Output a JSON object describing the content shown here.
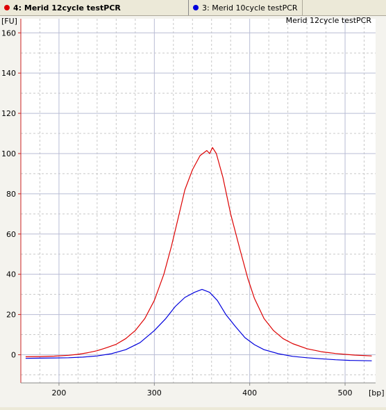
{
  "tabs": [
    {
      "label": "4: Merid 12cycle testPCR",
      "color": "#dd0000",
      "active": true
    },
    {
      "label": "3: Merid 10cycle testPCR",
      "color": "#0000dd",
      "active": false
    }
  ],
  "chart_data": {
    "type": "line",
    "title": "Merid 12cycle testPCR",
    "xlabel": "[bp]",
    "ylabel": "[FU]",
    "x_ticks": [
      "200",
      "300",
      "400",
      "500"
    ],
    "y_ticks": [
      "0",
      "20",
      "40",
      "60",
      "80",
      "100",
      "120",
      "140",
      "160"
    ],
    "colors": {
      "plot_bg": "#ffffff",
      "axis": "#cc2222",
      "grid_major": "#b8bcd4",
      "grid_minor": "#c8c8c8"
    },
    "series": [
      {
        "color": "#dd0000",
        "points": [
          [
            165,
            -1.0
          ],
          [
            180,
            -0.9
          ],
          [
            195,
            -0.7
          ],
          [
            210,
            -0.3
          ],
          [
            220,
            0.2
          ],
          [
            230,
            1.0
          ],
          [
            240,
            2.0
          ],
          [
            250,
            3.5
          ],
          [
            260,
            5.2
          ],
          [
            270,
            8.0
          ],
          [
            280,
            12.0
          ],
          [
            290,
            18.0
          ],
          [
            300,
            27.0
          ],
          [
            310,
            40.0
          ],
          [
            318,
            54.0
          ],
          [
            325,
            68.0
          ],
          [
            332,
            82.0
          ],
          [
            340,
            92.0
          ],
          [
            348,
            99.0
          ],
          [
            355,
            101.5
          ],
          [
            358,
            100.0
          ],
          [
            361,
            103.0
          ],
          [
            365,
            100.0
          ],
          [
            372,
            88.0
          ],
          [
            380,
            70.0
          ],
          [
            390,
            52.0
          ],
          [
            398,
            38.0
          ],
          [
            405,
            28.0
          ],
          [
            415,
            18.0
          ],
          [
            425,
            12.0
          ],
          [
            435,
            8.0
          ],
          [
            445,
            5.5
          ],
          [
            460,
            3.0
          ],
          [
            475,
            1.5
          ],
          [
            490,
            0.6
          ],
          [
            510,
            -0.2
          ],
          [
            528,
            -0.6
          ]
        ]
      },
      {
        "color": "#0000dd",
        "points": [
          [
            165,
            -1.8
          ],
          [
            180,
            -1.7
          ],
          [
            195,
            -1.6
          ],
          [
            210,
            -1.5
          ],
          [
            225,
            -1.2
          ],
          [
            240,
            -0.6
          ],
          [
            255,
            0.5
          ],
          [
            270,
            2.5
          ],
          [
            285,
            6.0
          ],
          [
            300,
            12.0
          ],
          [
            312,
            18.0
          ],
          [
            322,
            24.0
          ],
          [
            332,
            28.5
          ],
          [
            342,
            31.0
          ],
          [
            350,
            32.5
          ],
          [
            358,
            31.0
          ],
          [
            366,
            27.0
          ],
          [
            375,
            20.0
          ],
          [
            385,
            14.0
          ],
          [
            395,
            8.5
          ],
          [
            405,
            5.0
          ],
          [
            415,
            2.5
          ],
          [
            430,
            0.5
          ],
          [
            445,
            -0.8
          ],
          [
            460,
            -1.5
          ],
          [
            475,
            -2.0
          ],
          [
            490,
            -2.5
          ],
          [
            505,
            -2.8
          ],
          [
            528,
            -3.0
          ]
        ]
      }
    ],
    "xlim": [
      160,
      532
    ],
    "ylim": [
      -14,
      167
    ],
    "x_major_grid": [
      200,
      300,
      400,
      500
    ],
    "x_minor_grid": [
      180,
      220,
      240,
      260,
      280,
      320,
      340,
      360,
      380,
      420,
      440,
      460,
      480,
      520
    ],
    "y_major_grid": [
      0,
      20,
      40,
      60,
      80,
      100,
      120,
      140,
      160
    ],
    "y_minor_grid": [
      -10,
      10,
      30,
      50,
      70,
      90,
      110,
      130,
      150
    ],
    "grid": true
  }
}
